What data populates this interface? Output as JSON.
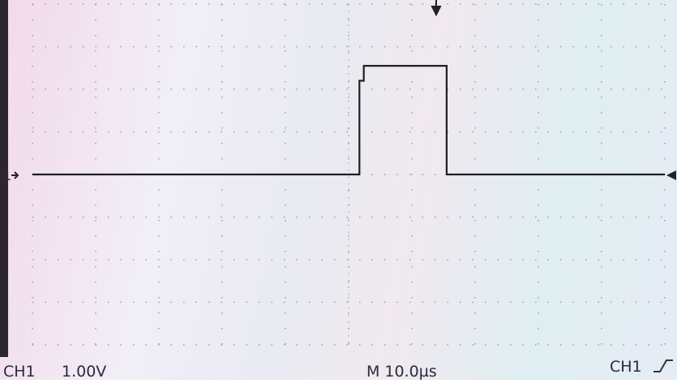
{
  "chart_data": {
    "type": "line",
    "channel_marker": "1",
    "channel": "CH1",
    "volts_per_div": "1.00V",
    "time_per_div": "M 10.0µs",
    "trigger_channel": "CH1",
    "x": [
      0,
      51.7,
      51.7,
      52.4,
      52.4,
      65.5,
      65.5,
      100
    ],
    "series": [
      {
        "color": "#1e1e24",
        "values": [
          0,
          0,
          2.2,
          2.2,
          2.55,
          2.55,
          0,
          0
        ]
      }
    ],
    "xlim": [
      0,
      100
    ],
    "ylim": [
      -4,
      4
    ]
  }
}
